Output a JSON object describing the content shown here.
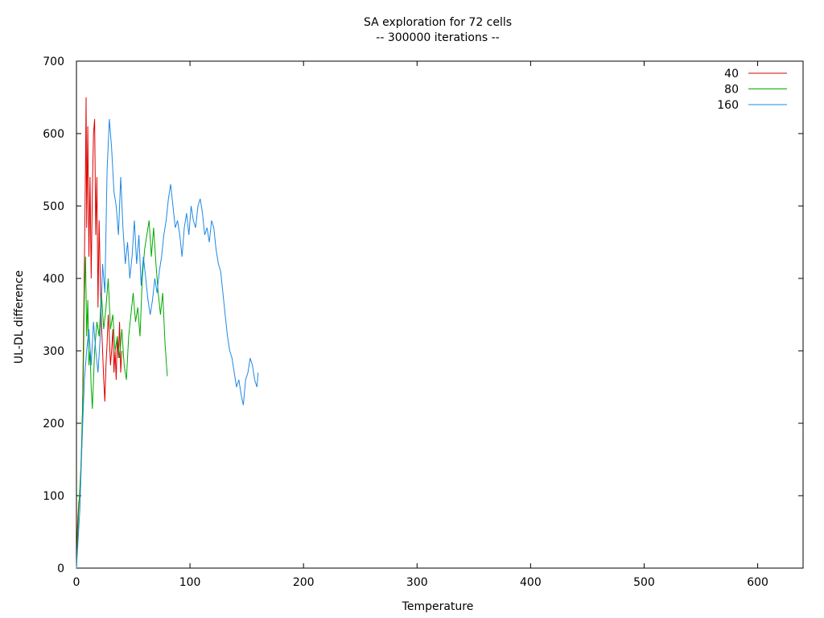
{
  "chart_data": {
    "type": "line",
    "title": "SA exploration for 72 cells",
    "subtitle": "-- 300000 iterations --",
    "xlabel": "Temperature",
    "ylabel": "UL-DL difference",
    "xlim": [
      0,
      640
    ],
    "ylim": [
      0,
      700
    ],
    "xticks": [
      0,
      100,
      200,
      300,
      400,
      500,
      600
    ],
    "yticks": [
      0,
      100,
      200,
      300,
      400,
      500,
      600,
      700
    ],
    "grid": false,
    "legend_position": "top-right",
    "series": [
      {
        "name": "40",
        "color": "#dd0000",
        "points": [
          [
            0,
            0
          ],
          [
            1,
            60
          ],
          [
            2,
            90
          ],
          [
            3,
            100
          ],
          [
            4,
            140
          ],
          [
            5,
            180
          ],
          [
            6,
            300
          ],
          [
            7,
            420
          ],
          [
            8,
            560
          ],
          [
            8.5,
            650
          ],
          [
            9,
            470
          ],
          [
            10,
            610
          ],
          [
            11,
            430
          ],
          [
            12,
            540
          ],
          [
            13,
            400
          ],
          [
            14,
            520
          ],
          [
            15,
            600
          ],
          [
            16,
            620
          ],
          [
            17,
            460
          ],
          [
            18,
            540
          ],
          [
            19,
            360
          ],
          [
            20,
            480
          ],
          [
            21,
            400
          ],
          [
            22,
            340
          ],
          [
            23,
            300
          ],
          [
            24,
            260
          ],
          [
            25,
            230
          ],
          [
            26,
            280
          ],
          [
            27,
            310
          ],
          [
            28,
            350
          ],
          [
            29,
            320
          ],
          [
            30,
            280
          ],
          [
            31,
            300
          ],
          [
            32,
            330
          ],
          [
            33,
            270
          ],
          [
            34,
            300
          ],
          [
            35,
            260
          ],
          [
            36,
            320
          ],
          [
            37,
            290
          ],
          [
            38,
            340
          ],
          [
            39,
            270
          ],
          [
            40,
            300
          ]
        ]
      },
      {
        "name": "80",
        "color": "#00aa00",
        "points": [
          [
            0,
            0
          ],
          [
            2,
            80
          ],
          [
            4,
            140
          ],
          [
            6,
            260
          ],
          [
            7,
            380
          ],
          [
            8,
            430
          ],
          [
            9,
            320
          ],
          [
            10,
            370
          ],
          [
            11,
            280
          ],
          [
            12,
            300
          ],
          [
            13,
            250
          ],
          [
            14,
            220
          ],
          [
            15,
            260
          ],
          [
            16,
            300
          ],
          [
            18,
            340
          ],
          [
            20,
            320
          ],
          [
            22,
            380
          ],
          [
            24,
            330
          ],
          [
            26,
            360
          ],
          [
            28,
            400
          ],
          [
            30,
            330
          ],
          [
            32,
            350
          ],
          [
            34,
            300
          ],
          [
            36,
            320
          ],
          [
            38,
            290
          ],
          [
            40,
            330
          ],
          [
            42,
            280
          ],
          [
            44,
            260
          ],
          [
            46,
            320
          ],
          [
            48,
            350
          ],
          [
            50,
            380
          ],
          [
            52,
            340
          ],
          [
            54,
            360
          ],
          [
            56,
            320
          ],
          [
            58,
            400
          ],
          [
            60,
            440
          ],
          [
            62,
            460
          ],
          [
            64,
            480
          ],
          [
            66,
            430
          ],
          [
            68,
            470
          ],
          [
            70,
            420
          ],
          [
            72,
            380
          ],
          [
            74,
            350
          ],
          [
            76,
            380
          ],
          [
            78,
            310
          ],
          [
            80,
            265
          ]
        ]
      },
      {
        "name": "160",
        "color": "#1e88e5",
        "points": [
          [
            0,
            0
          ],
          [
            3,
            80
          ],
          [
            5,
            180
          ],
          [
            7,
            260
          ],
          [
            9,
            300
          ],
          [
            11,
            330
          ],
          [
            13,
            280
          ],
          [
            15,
            340
          ],
          [
            17,
            300
          ],
          [
            19,
            270
          ],
          [
            21,
            320
          ],
          [
            23,
            420
          ],
          [
            25,
            380
          ],
          [
            27,
            550
          ],
          [
            29,
            620
          ],
          [
            31,
            580
          ],
          [
            33,
            520
          ],
          [
            35,
            500
          ],
          [
            37,
            460
          ],
          [
            39,
            540
          ],
          [
            41,
            470
          ],
          [
            43,
            420
          ],
          [
            45,
            450
          ],
          [
            47,
            400
          ],
          [
            49,
            430
          ],
          [
            51,
            480
          ],
          [
            53,
            420
          ],
          [
            55,
            460
          ],
          [
            57,
            390
          ],
          [
            59,
            430
          ],
          [
            61,
            400
          ],
          [
            63,
            370
          ],
          [
            65,
            350
          ],
          [
            67,
            370
          ],
          [
            69,
            400
          ],
          [
            71,
            380
          ],
          [
            73,
            410
          ],
          [
            75,
            430
          ],
          [
            77,
            460
          ],
          [
            79,
            480
          ],
          [
            81,
            510
          ],
          [
            83,
            530
          ],
          [
            85,
            500
          ],
          [
            87,
            470
          ],
          [
            89,
            480
          ],
          [
            91,
            460
          ],
          [
            93,
            430
          ],
          [
            95,
            470
          ],
          [
            97,
            490
          ],
          [
            99,
            460
          ],
          [
            101,
            500
          ],
          [
            103,
            480
          ],
          [
            105,
            470
          ],
          [
            107,
            500
          ],
          [
            109,
            510
          ],
          [
            111,
            490
          ],
          [
            113,
            460
          ],
          [
            115,
            470
          ],
          [
            117,
            450
          ],
          [
            119,
            480
          ],
          [
            121,
            470
          ],
          [
            123,
            440
          ],
          [
            125,
            420
          ],
          [
            127,
            410
          ],
          [
            129,
            380
          ],
          [
            131,
            350
          ],
          [
            133,
            320
          ],
          [
            135,
            300
          ],
          [
            137,
            290
          ],
          [
            139,
            270
          ],
          [
            141,
            250
          ],
          [
            143,
            260
          ],
          [
            145,
            240
          ],
          [
            147,
            225
          ],
          [
            149,
            260
          ],
          [
            151,
            270
          ],
          [
            153,
            290
          ],
          [
            155,
            280
          ],
          [
            157,
            260
          ],
          [
            159,
            250
          ],
          [
            160,
            270
          ]
        ]
      }
    ]
  }
}
